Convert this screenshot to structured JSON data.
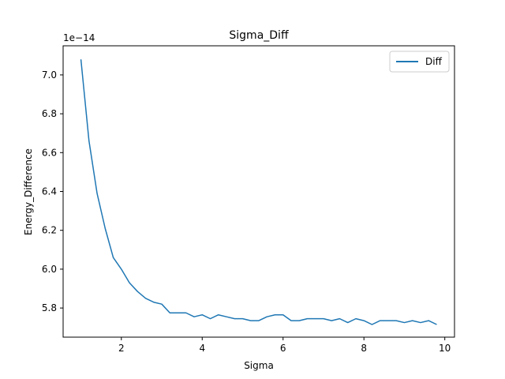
{
  "chart_data": {
    "type": "line",
    "title": "Sigma_Diff",
    "xlabel": "Sigma",
    "ylabel": "Energy_Difference",
    "y_offset_label": "1e−14",
    "xlim": [
      0.56,
      10.24
    ],
    "ylim": [
      5.65,
      7.15
    ],
    "x_ticks": [
      2,
      4,
      6,
      8,
      10
    ],
    "y_ticks": [
      5.8,
      6.0,
      6.2,
      6.4,
      6.6,
      6.8,
      7.0
    ],
    "x_tick_labels": [
      "2",
      "4",
      "6",
      "8",
      "10"
    ],
    "y_tick_labels": [
      "5.8",
      "6.0",
      "6.2",
      "6.4",
      "6.6",
      "6.8",
      "7.0"
    ],
    "grid": false,
    "legend_position": "top-right",
    "series": [
      {
        "name": "Diff",
        "color": "#1f77b4",
        "x": [
          1.0,
          1.2,
          1.4,
          1.6,
          1.8,
          2.0,
          2.2,
          2.4,
          2.6,
          2.8,
          3.0,
          3.2,
          3.4,
          3.6,
          3.8,
          4.0,
          4.2,
          4.4,
          4.6,
          4.8,
          5.0,
          5.2,
          5.4,
          5.6,
          5.8,
          6.0,
          6.2,
          6.4,
          6.6,
          6.8,
          7.0,
          7.2,
          7.4,
          7.6,
          7.8,
          8.0,
          8.2,
          8.4,
          8.6,
          8.8,
          9.0,
          9.2,
          9.4,
          9.6,
          9.8
        ],
        "y": [
          7.08,
          6.66,
          6.39,
          6.21,
          6.06,
          6.0,
          5.93,
          5.885,
          5.85,
          5.83,
          5.82,
          5.775,
          5.775,
          5.775,
          5.755,
          5.765,
          5.745,
          5.765,
          5.755,
          5.745,
          5.745,
          5.735,
          5.735,
          5.755,
          5.765,
          5.765,
          5.735,
          5.735,
          5.745,
          5.745,
          5.745,
          5.735,
          5.745,
          5.725,
          5.745,
          5.735,
          5.715,
          5.735,
          5.735,
          5.735,
          5.725,
          5.735,
          5.725,
          5.735,
          5.715
        ]
      }
    ]
  }
}
